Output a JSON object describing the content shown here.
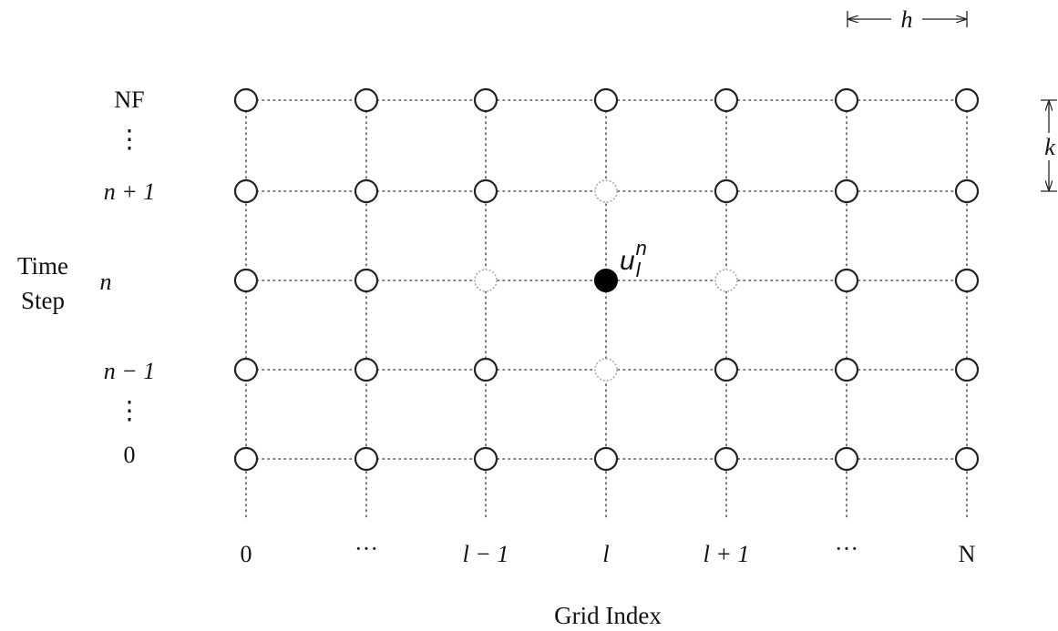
{
  "axes": {
    "y_title_line1": "Time",
    "y_title_line2": "Step",
    "x_title": "Grid Index"
  },
  "rows": [
    {
      "label": "NF",
      "italic": false
    },
    {
      "label": "n + 1",
      "italic": true
    },
    {
      "label": "n",
      "italic": true
    },
    {
      "label": "n − 1",
      "italic": true
    },
    {
      "label": "0",
      "italic": false
    }
  ],
  "row_ellipsis": "⋮",
  "columns": [
    {
      "label": "0",
      "italic": false
    },
    {
      "label": "···",
      "italic": false
    },
    {
      "label": "l − 1",
      "italic": true
    },
    {
      "label": "l",
      "italic": true
    },
    {
      "label": "l + 1",
      "italic": true
    },
    {
      "label": "···",
      "italic": false
    },
    {
      "label": "N",
      "italic": false
    }
  ],
  "stencil": {
    "center_label_base": "u",
    "center_label_sub": "l",
    "center_label_sup": "n",
    "center_node": {
      "row": 2,
      "col": 3
    },
    "neighbor_nodes": [
      {
        "row": 1,
        "col": 3
      },
      {
        "row": 3,
        "col": 3
      },
      {
        "row": 2,
        "col": 2
      },
      {
        "row": 2,
        "col": 4
      }
    ]
  },
  "spacing_labels": {
    "h": "h",
    "k": "k"
  }
}
